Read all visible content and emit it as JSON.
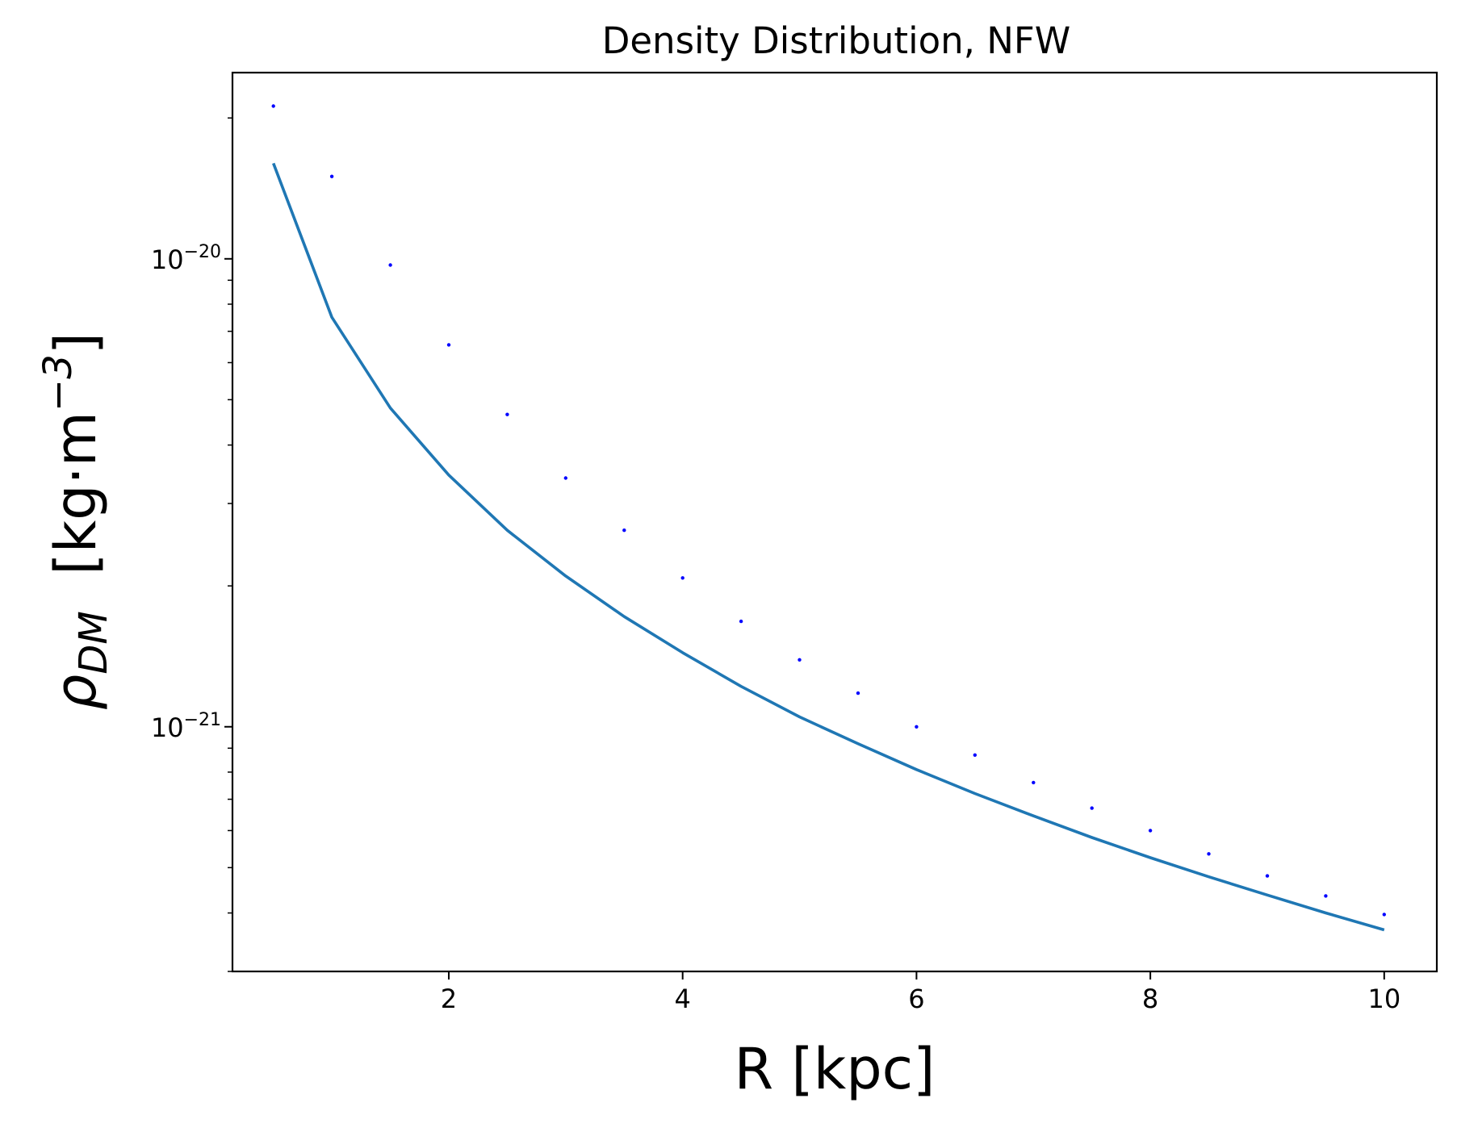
{
  "chart_data": {
    "type": "line",
    "title": "Density Distribution, NFW",
    "xlabel": "R [kpc]",
    "ylabel": {
      "symbol": "ρ",
      "subscript": "DM",
      "units": "[kg·m",
      "units_exp": "−3",
      "units_close": "]"
    },
    "xlim": [
      0.15,
      10.45
    ],
    "ylim": [
      3e-22,
      2.5e-20
    ],
    "yscale": "log",
    "grid": false,
    "x_ticks": [
      {
        "value": 2,
        "label": "2"
      },
      {
        "value": 4,
        "label": "4"
      },
      {
        "value": 6,
        "label": "6"
      },
      {
        "value": 8,
        "label": "8"
      },
      {
        "value": 10,
        "label": "10"
      }
    ],
    "y_major_ticks": [
      {
        "value": 1e-20,
        "base": "10",
        "exp": "−20"
      },
      {
        "value": 1e-21,
        "base": "10",
        "exp": "−21"
      }
    ],
    "y_minor_ticks": [
      3e-22,
      4e-22,
      5e-22,
      6e-22,
      7e-22,
      8e-22,
      9e-22,
      2e-21,
      3e-21,
      4e-21,
      5e-21,
      6e-21,
      7e-21,
      8e-21,
      9e-21,
      2e-20
    ],
    "x": [
      0.5,
      1.0,
      1.5,
      2.0,
      2.5,
      3.0,
      3.5,
      4.0,
      4.5,
      5.0,
      5.5,
      6.0,
      6.5,
      7.0,
      7.5,
      8.0,
      8.5,
      9.0,
      9.5,
      10.0
    ],
    "series": [
      {
        "style": "line",
        "color": "#1f77b4",
        "values": [
          1.6e-20,
          7.5e-21,
          4.8e-21,
          3.45e-21,
          2.63e-21,
          2.1e-21,
          1.72e-21,
          1.44e-21,
          1.22e-21,
          1.05e-21,
          9.2e-22,
          8.1e-22,
          7.2e-22,
          6.45e-22,
          5.8e-22,
          5.25e-22,
          4.78e-22,
          4.37e-22,
          4e-22,
          3.68e-22
        ]
      },
      {
        "style": "points",
        "color": "#0000ff",
        "values": [
          2.12e-20,
          1.5e-20,
          9.7e-21,
          6.55e-21,
          4.65e-21,
          3.4e-21,
          2.63e-21,
          2.08e-21,
          1.68e-21,
          1.39e-21,
          1.18e-21,
          1e-21,
          8.7e-22,
          7.6e-22,
          6.7e-22,
          6e-22,
          5.35e-22,
          4.8e-22,
          4.35e-22,
          3.97e-22
        ]
      }
    ]
  }
}
